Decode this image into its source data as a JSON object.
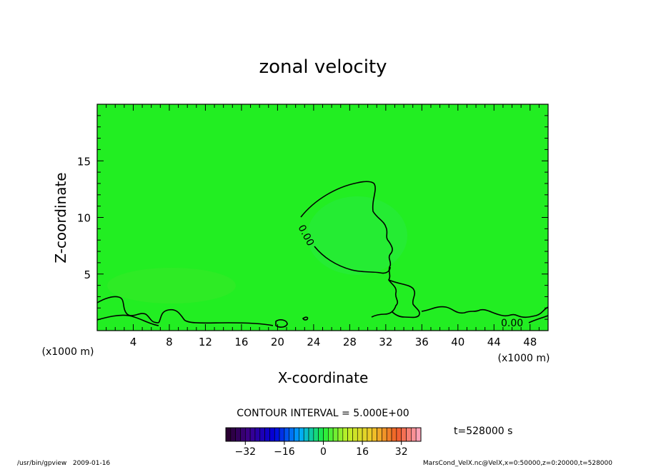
{
  "chart_data": {
    "type": "heatmap",
    "title": "zonal velocity",
    "xlabel": "X-coordinate",
    "ylabel": "Z-coordinate",
    "x_unit": "(x1000 m)",
    "y_unit": "(x1000 m)",
    "xlim": [
      0,
      50
    ],
    "ylim": [
      0,
      20
    ],
    "x_ticks": [
      4,
      8,
      12,
      16,
      20,
      24,
      28,
      32,
      36,
      40,
      44,
      48
    ],
    "y_ticks": [
      5,
      10,
      15
    ],
    "contour_interval": "CONTOUR INTERVAL = 5.000E+00",
    "contour_labels": [
      "0.00",
      "0.00"
    ],
    "time_label": "t=528000 s",
    "colorbar": {
      "min": -40,
      "max": 40,
      "tick_values": [
        -32,
        -16,
        0,
        16,
        32
      ],
      "tick_labels": [
        "−32",
        "−16",
        "0",
        "16",
        "32"
      ]
    },
    "field_color": "#22ee22",
    "footer_left": "/usr/bin/gpview   2009-01-16",
    "footer_right": "MarsCond_VelX.nc@VelX,x=0:50000,z=0:20000,t=528000"
  }
}
